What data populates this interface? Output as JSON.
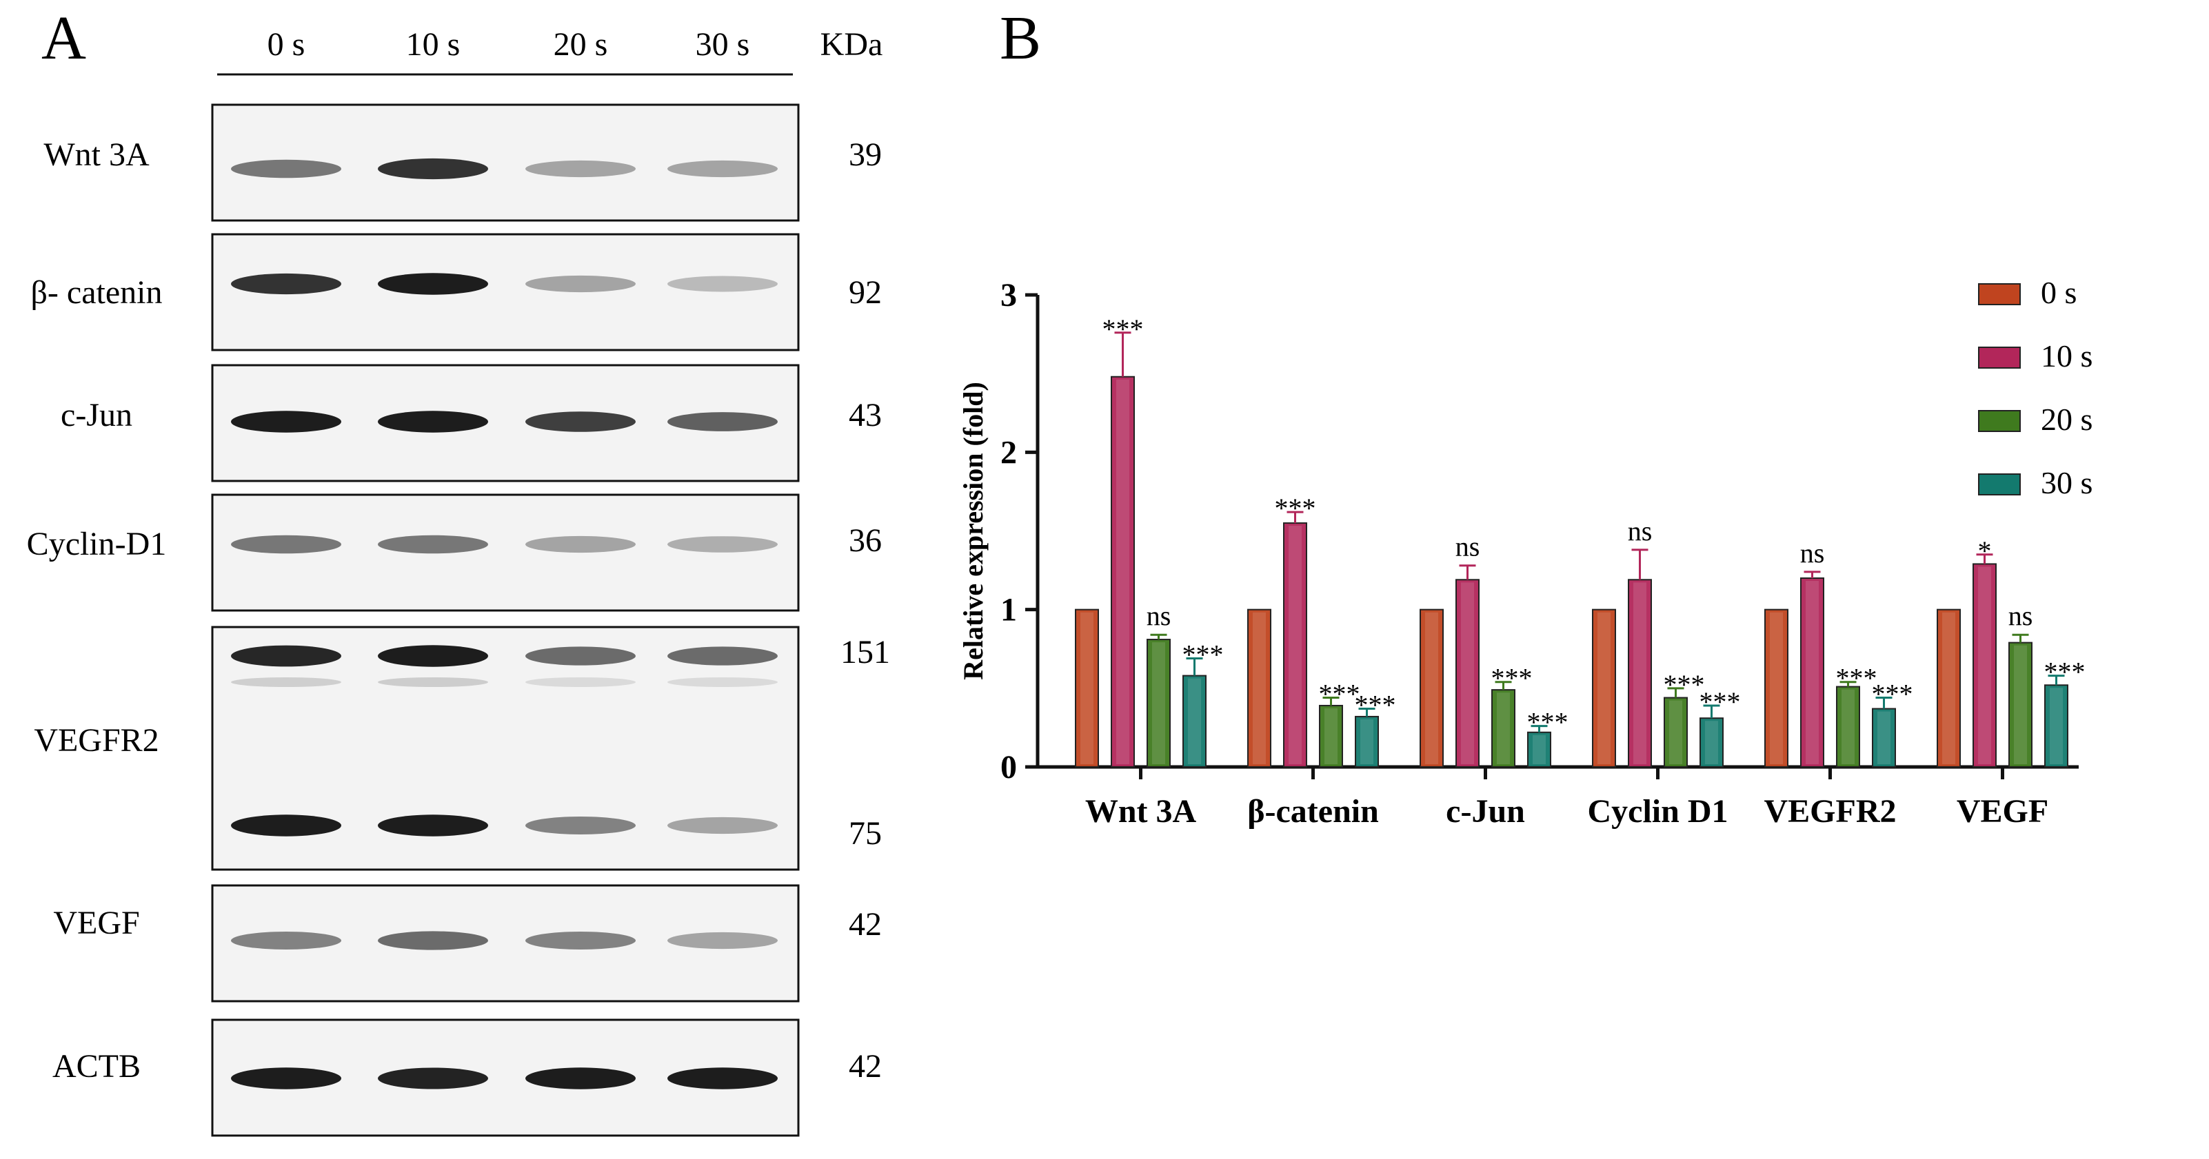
{
  "panel_a": {
    "letter": "A",
    "kda_header": "KDa",
    "lanes": [
      "0 s",
      "10 s",
      "20 s",
      "30 s"
    ],
    "rows": [
      {
        "label": "Wnt 3A",
        "kda": [
          "39"
        ],
        "intensity": [
          0.55,
          0.85,
          0.35,
          0.35
        ]
      },
      {
        "label": "β- catenin",
        "kda": [
          "92"
        ],
        "intensity": [
          0.85,
          0.95,
          0.35,
          0.25
        ]
      },
      {
        "label": "c-Jun",
        "kda": [
          "43"
        ],
        "intensity": [
          0.95,
          0.95,
          0.8,
          0.65
        ]
      },
      {
        "label": "Cyclin-D1",
        "kda": [
          "36"
        ],
        "intensity": [
          0.55,
          0.55,
          0.35,
          0.3
        ]
      },
      {
        "label": "VEGFR2",
        "kda": [
          "151",
          "75"
        ],
        "intensity": [
          0.9,
          0.95,
          0.6,
          0.6
        ],
        "intensity2": [
          0.95,
          0.95,
          0.5,
          0.35
        ]
      },
      {
        "label": "VEGF",
        "kda": [
          "42"
        ],
        "intensity": [
          0.5,
          0.6,
          0.5,
          0.35
        ]
      },
      {
        "label": "ACTB",
        "kda": [
          "42"
        ],
        "intensity": [
          0.95,
          0.92,
          0.95,
          0.95
        ]
      }
    ]
  },
  "chart_data": {
    "type": "bar",
    "panel_letter": "B",
    "title": "",
    "xlabel": "",
    "ylabel": "Relative expression (fold)",
    "ylim": [
      0,
      3
    ],
    "yticks": [
      "0",
      "1",
      "2",
      "3"
    ],
    "categories": [
      "Wnt 3A",
      "β-catenin",
      "c-Jun",
      "Cyclin D1",
      "VEGFR2",
      "VEGF"
    ],
    "legend_position": "top-right",
    "series": [
      {
        "name": "0 s",
        "color": "#c0441f",
        "values": [
          1,
          1,
          1,
          1,
          1,
          1
        ],
        "errors": [
          0,
          0,
          0,
          0,
          0,
          0
        ],
        "labels": [
          "",
          "",
          "",
          "",
          "",
          ""
        ]
      },
      {
        "name": "10 s",
        "color": "#b2265a",
        "values": [
          2.48,
          1.55,
          1.19,
          1.19,
          1.2,
          1.29
        ],
        "errors": [
          0.28,
          0.07,
          0.09,
          0.19,
          0.04,
          0.06
        ],
        "labels": [
          "***",
          "***",
          "ns",
          "ns",
          "ns",
          "*"
        ]
      },
      {
        "name": "20 s",
        "color": "#3f7a1e",
        "values": [
          0.81,
          0.39,
          0.49,
          0.44,
          0.51,
          0.79
        ],
        "errors": [
          0.03,
          0.05,
          0.05,
          0.06,
          0.03,
          0.05
        ],
        "labels": [
          "ns",
          "***",
          "***",
          "***",
          "***",
          "ns"
        ]
      },
      {
        "name": "30 s",
        "color": "#137a6e",
        "values": [
          0.58,
          0.32,
          0.22,
          0.31,
          0.37,
          0.52
        ],
        "errors": [
          0.11,
          0.05,
          0.04,
          0.08,
          0.07,
          0.06
        ],
        "labels": [
          "***",
          "***",
          "***",
          "***",
          "***",
          "***"
        ]
      }
    ]
  }
}
